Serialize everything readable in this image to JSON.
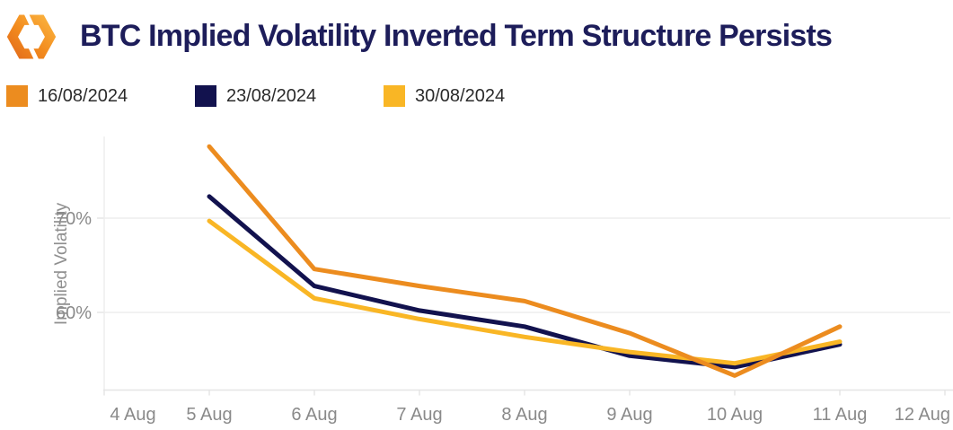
{
  "header": {
    "title": "BTC Implied Volatility Inverted Term Structure Persists",
    "logo_icon": "hexagon-brand-logo-icon"
  },
  "legend": {
    "items": [
      {
        "label": "16/08/2024",
        "color": "#EC8C1F"
      },
      {
        "label": "23/08/2024",
        "color": "#12124E"
      },
      {
        "label": "30/08/2024",
        "color": "#F9B625"
      }
    ]
  },
  "chart_data": {
    "type": "line",
    "title": "BTC Implied Volatility Inverted Term Structure Persists",
    "x": [
      "5 Aug",
      "6 Aug",
      "7 Aug",
      "8 Aug",
      "9 Aug",
      "10 Aug",
      "11 Aug"
    ],
    "series": [
      {
        "name": "16/08/2024",
        "color": "#EC8C1F",
        "values": [
          77.6,
          64.6,
          62.8,
          61.2,
          57.8,
          53.3,
          58.5
        ]
      },
      {
        "name": "23/08/2024",
        "color": "#12124E",
        "values": [
          72.3,
          62.8,
          60.2,
          58.5,
          55.4,
          54.2,
          56.6
        ]
      },
      {
        "name": "30/08/2024",
        "color": "#F9B625",
        "values": [
          69.7,
          61.5,
          59.3,
          57.4,
          55.8,
          54.6,
          56.9
        ]
      }
    ],
    "xlabel": "",
    "ylabel": "Implied Volatility",
    "x_axis": {
      "tick_labels": [
        "4 Aug",
        "5 Aug",
        "6 Aug",
        "7 Aug",
        "8 Aug",
        "9 Aug",
        "10 Aug",
        "11 Aug",
        "12 Aug"
      ]
    },
    "y_axis": {
      "ticks": [
        {
          "value": 70,
          "label": "70%"
        },
        {
          "value": 60,
          "label": "60%"
        }
      ]
    },
    "ylim": [
      51.5,
      78.7
    ],
    "grid": "horizontal-only",
    "legend_position": "top-left",
    "draw_order": [
      "23/08/2024",
      "30/08/2024",
      "16/08/2024"
    ]
  },
  "theme": {
    "background": "#FFFFFF",
    "title_color": "#1D1D5A",
    "axis_text_color": "#8A8A8A",
    "gridline_color": "#EDEDED",
    "axis_line_color": "#E5E5E5",
    "legend_text_color": "#2B2B2B"
  }
}
